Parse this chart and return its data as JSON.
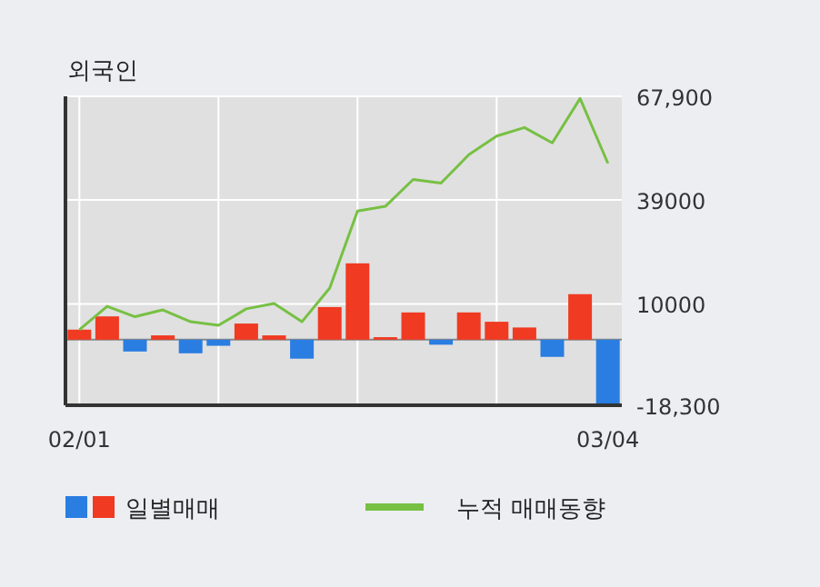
{
  "chart_data": {
    "type": "bar",
    "title": "외국인",
    "categories": [
      "02/01",
      null,
      null,
      null,
      null,
      null,
      null,
      null,
      null,
      null,
      null,
      null,
      null,
      null,
      null,
      null,
      null,
      null,
      null,
      "03/04"
    ],
    "series": [
      {
        "name": "일별매매",
        "colors": [
          "#f03a22",
          "#f03a22",
          "#2a7de1",
          "#f03a22",
          "#2a7de1",
          "#2a7de1",
          "#f03a22",
          "#f03a22",
          "#2a7de1",
          "#f03a22",
          "#f03a22",
          "#f03a22",
          "#f03a22",
          "#2a7de1",
          "#f03a22",
          "#f03a22",
          "#f03a22",
          "#2a7de1",
          "#f03a22",
          "#2a7de1"
        ],
        "values": [
          2800,
          6500,
          -3300,
          1200,
          -3800,
          -1700,
          4500,
          1200,
          -5300,
          9100,
          21300,
          700,
          7600,
          -1400,
          7600,
          5000,
          3400,
          -4800,
          12700,
          -18300
        ]
      },
      {
        "name": "누적 매매동향",
        "type": "line",
        "color": "#77c043",
        "values": [
          2800,
          9300,
          6400,
          8300,
          5000,
          4000,
          8600,
          10100,
          5000,
          14400,
          35900,
          37200,
          44700,
          43700,
          51600,
          56800,
          59200,
          54900,
          67300,
          49200
        ]
      }
    ],
    "ylim": [
      -18300,
      67900
    ],
    "yticks": [
      {
        "value": 67900,
        "label": "67,900"
      },
      39000,
      10000,
      {
        "value": -18300,
        "label": "-18,300"
      }
    ],
    "grid": true,
    "legend": "bottom"
  }
}
